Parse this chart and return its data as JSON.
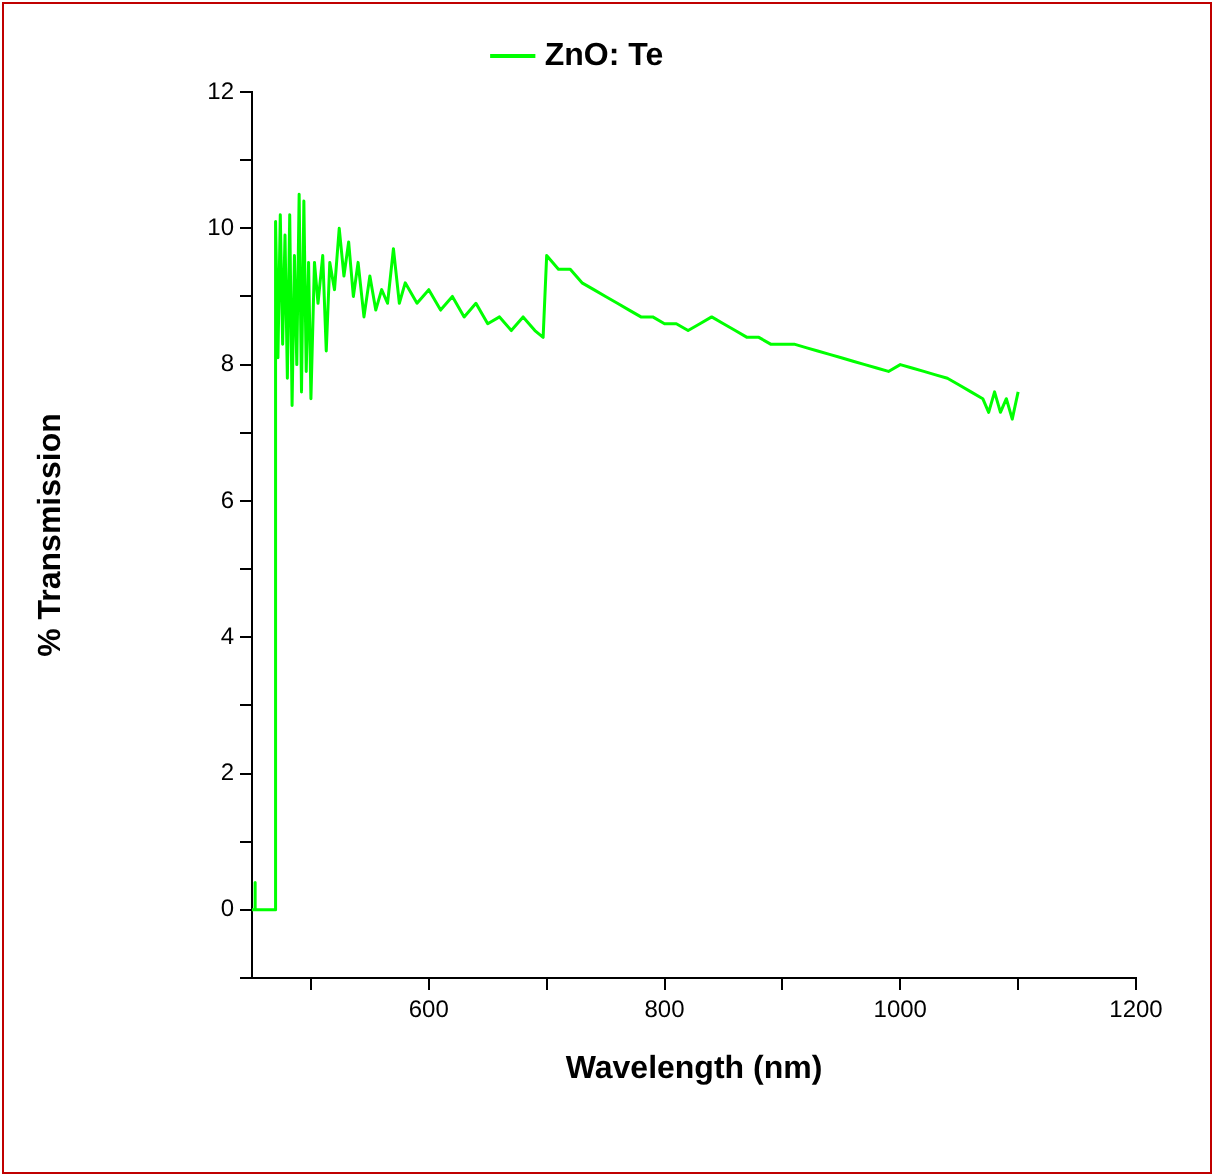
{
  "chart_data": {
    "type": "line",
    "xlabel": "Wavelength (nm)",
    "ylabel": "% Transmission",
    "xlim": [
      450,
      1200
    ],
    "ylim": [
      -1,
      12
    ],
    "xticks": [
      {
        "value": 500,
        "label": null
      },
      600,
      {
        "value": 700,
        "label": null
      },
      800,
      {
        "value": 900,
        "label": null
      },
      1000,
      {
        "value": 1100,
        "label": null
      },
      1200
    ],
    "yticks": [
      {
        "value": -1,
        "label": null
      },
      0,
      {
        "value": 1,
        "label": null
      },
      2,
      {
        "value": 3,
        "label": null
      },
      4,
      {
        "value": 5,
        "label": null
      },
      6,
      {
        "value": 7,
        "label": null
      },
      8,
      {
        "value": 9,
        "label": null
      },
      10,
      {
        "value": 11,
        "label": null
      },
      12
    ],
    "grid": false,
    "legend": "top",
    "marker": "none",
    "line_style": "solid",
    "series": [
      {
        "name": "ZnO: Te",
        "color": "#00ff00",
        "x": [
          450,
          452,
          452,
          453,
          453,
          469,
          470,
          472,
          474,
          476,
          478,
          480,
          482,
          484,
          486,
          488,
          490,
          492,
          494,
          496,
          498,
          500,
          503,
          506,
          510,
          513,
          516,
          520,
          524,
          528,
          532,
          536,
          540,
          545,
          550,
          555,
          560,
          565,
          570,
          575,
          580,
          590,
          600,
          610,
          620,
          630,
          640,
          650,
          660,
          670,
          680,
          690,
          697,
          700,
          710,
          720,
          730,
          740,
          750,
          760,
          770,
          780,
          790,
          800,
          810,
          820,
          830,
          840,
          850,
          860,
          870,
          880,
          890,
          900,
          910,
          920,
          930,
          940,
          950,
          960,
          970,
          980,
          990,
          1000,
          1010,
          1020,
          1030,
          1040,
          1050,
          1060,
          1070,
          1075,
          1080,
          1085,
          1090,
          1095,
          1100
        ],
        "values": [
          0,
          0,
          0.4,
          0.4,
          0,
          0,
          10.1,
          8.1,
          10.2,
          8.3,
          9.9,
          7.8,
          10.2,
          7.4,
          9.6,
          8.0,
          10.5,
          7.6,
          10.4,
          7.9,
          9.5,
          7.5,
          9.5,
          8.9,
          9.6,
          8.2,
          9.5,
          9.1,
          10.0,
          9.3,
          9.8,
          9.0,
          9.5,
          8.7,
          9.3,
          8.8,
          9.1,
          8.9,
          9.7,
          8.9,
          9.2,
          8.9,
          9.1,
          8.8,
          9.0,
          8.7,
          8.9,
          8.6,
          8.7,
          8.5,
          8.7,
          8.5,
          8.4,
          9.6,
          9.4,
          9.4,
          9.2,
          9.1,
          9.0,
          8.9,
          8.8,
          8.7,
          8.7,
          8.6,
          8.6,
          8.5,
          8.6,
          8.7,
          8.6,
          8.5,
          8.4,
          8.4,
          8.3,
          8.3,
          8.3,
          8.25,
          8.2,
          8.15,
          8.1,
          8.05,
          8.0,
          7.95,
          7.9,
          8.0,
          7.95,
          7.9,
          7.85,
          7.8,
          7.7,
          7.6,
          7.5,
          7.3,
          7.6,
          7.3,
          7.5,
          7.2,
          7.6
        ]
      }
    ]
  }
}
